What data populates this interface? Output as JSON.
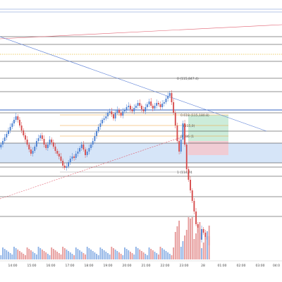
{
  "chart_data": {
    "type": "candlestick",
    "title": "",
    "xlabel": "",
    "ylabel": "",
    "x_ticks": [
      "14:00",
      "15:00",
      "16:00",
      "17:00",
      "18:00",
      "19:00",
      "20:00",
      "21:00",
      "22:00",
      "23:00",
      "28",
      "01:00",
      "02:00",
      "03:00",
      "04:0"
    ],
    "annotations": {
      "high_label": "0 (115,847.4)",
      "fib_618": "0.618 (115,180.8)",
      "fib_level": "(115,0)",
      "fib_786": "0.786 (1",
      "low_label": "1 (114,74"
    },
    "colors": {
      "up": "#4a7fd1",
      "down": "#d64a4a",
      "volume_up": "#8fb3e6",
      "volume_down": "#e69a9a",
      "zone_blue": "#cfe0f7",
      "target_green": "#c6ead6",
      "stop_red": "#f3c9cf",
      "fib_orange": "#f0a030",
      "trend_red": "#e06070",
      "trend_blue": "#5b7fd6"
    },
    "grid": false,
    "legend": "none"
  }
}
